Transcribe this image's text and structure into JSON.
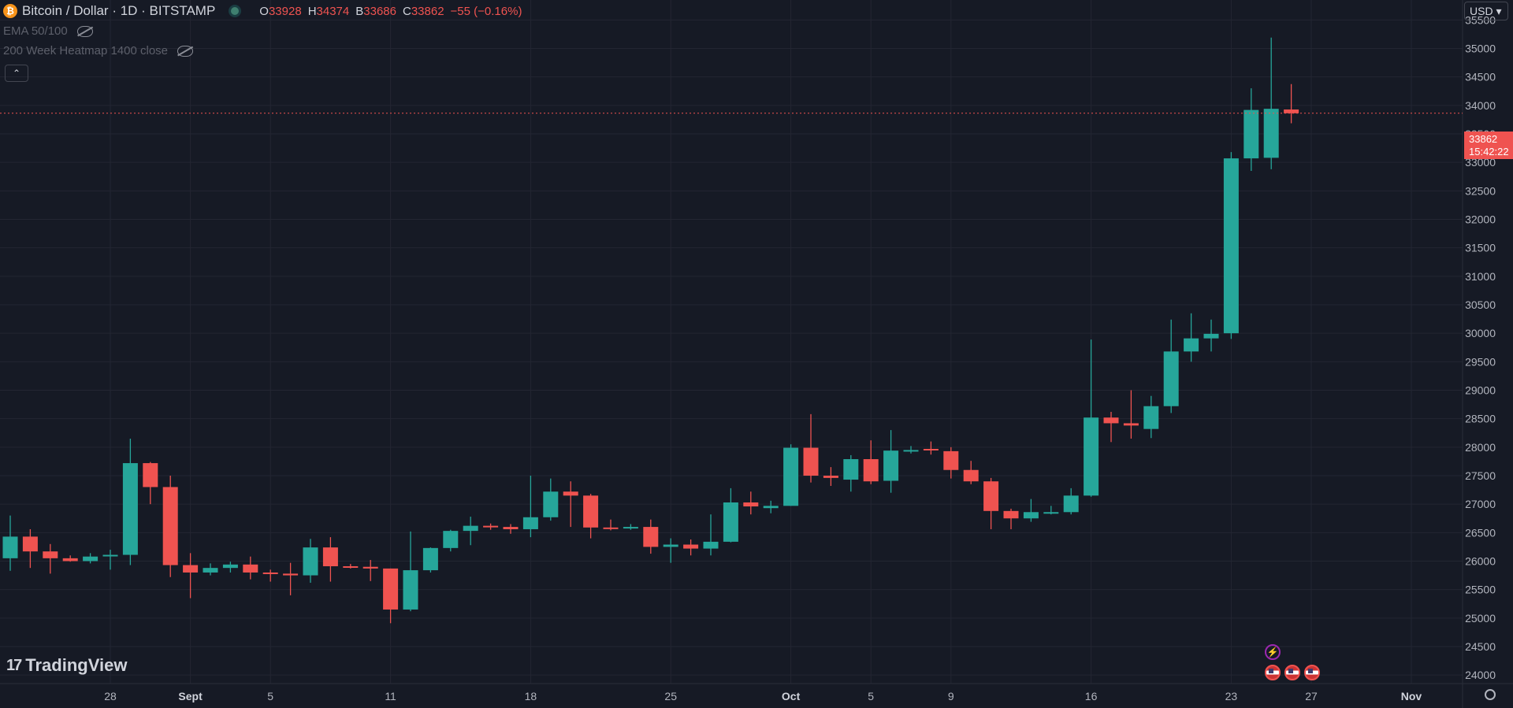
{
  "symbol": {
    "coin_glyph": "₿",
    "title": "Bitcoin / Dollar · 1D · BITSTAMP",
    "open_label": "O",
    "open": "33928",
    "high_label": "H",
    "high": "34374",
    "low_label": "B",
    "low": "33686",
    "close_label": "C",
    "close": "33862",
    "change": "−55 (−0.16%)"
  },
  "indicators": [
    {
      "label": "EMA 50/100"
    },
    {
      "label": "200 Week Heatmap 1400 close"
    }
  ],
  "currency": "USD ▾",
  "logo": {
    "mark": "17",
    "text": "TradingView"
  },
  "price_tag": {
    "price": "33862",
    "countdown": "15:42:22"
  },
  "colors": {
    "up": "#26a69a",
    "down": "#ef5350",
    "background": "#161a25",
    "grid": "#232632"
  },
  "icons": [
    "settings-icon",
    "eye-off-icon",
    "chevron-up-icon",
    "flag-us-icon",
    "lightning-icon"
  ],
  "chart_data": {
    "type": "candlestick",
    "grid": true,
    "ylim": [
      23850,
      35850
    ],
    "y_ticks": [
      24000,
      24500,
      25000,
      25500,
      26000,
      26500,
      27000,
      27500,
      28000,
      28500,
      29000,
      29500,
      30000,
      30500,
      31000,
      31500,
      32000,
      32500,
      33000,
      33500,
      34000,
      34500,
      35000,
      35500
    ],
    "x_ticks": [
      {
        "label": "28",
        "index": 5,
        "bold": false
      },
      {
        "label": "Sept",
        "index": 9,
        "bold": true
      },
      {
        "label": "5",
        "index": 13,
        "bold": false
      },
      {
        "label": "11",
        "index": 19,
        "bold": false
      },
      {
        "label": "18",
        "index": 26,
        "bold": false
      },
      {
        "label": "25",
        "index": 33,
        "bold": false
      },
      {
        "label": "Oct",
        "index": 39,
        "bold": true
      },
      {
        "label": "5",
        "index": 43,
        "bold": false
      },
      {
        "label": "9",
        "index": 47,
        "bold": false
      },
      {
        "label": "16",
        "index": 54,
        "bold": false
      },
      {
        "label": "23",
        "index": 61,
        "bold": false
      },
      {
        "label": "27",
        "index": 65,
        "bold": false
      },
      {
        "label": "Nov",
        "index": 70,
        "bold": true
      }
    ],
    "last_price": 33862,
    "candles": [
      [
        26050,
        26800,
        25830,
        26430
      ],
      [
        26430,
        26560,
        25880,
        26170
      ],
      [
        26170,
        26300,
        25780,
        26050
      ],
      [
        26050,
        26100,
        25990,
        26000
      ],
      [
        26000,
        26140,
        25960,
        26080
      ],
      [
        26110,
        26200,
        25850,
        26110
      ],
      [
        26110,
        28150,
        25930,
        27720
      ],
      [
        27720,
        27740,
        27000,
        27300
      ],
      [
        27300,
        27500,
        25720,
        25930
      ],
      [
        25930,
        26140,
        25350,
        25800
      ],
      [
        25800,
        25960,
        25750,
        25880
      ],
      [
        25880,
        25990,
        25800,
        25940
      ],
      [
        25940,
        26080,
        25680,
        25800
      ],
      [
        25800,
        25850,
        25640,
        25780
      ],
      [
        25780,
        25970,
        25400,
        25750
      ],
      [
        25750,
        26390,
        25620,
        26240
      ],
      [
        26240,
        26420,
        25640,
        25910
      ],
      [
        25910,
        25950,
        25870,
        25900
      ],
      [
        25900,
        26020,
        25650,
        25870
      ],
      [
        25870,
        25870,
        24910,
        25150
      ],
      [
        25150,
        26520,
        25120,
        25840
      ],
      [
        25840,
        26240,
        25800,
        26230
      ],
      [
        26230,
        26550,
        26170,
        26530
      ],
      [
        26530,
        26780,
        26280,
        26620
      ],
      [
        26620,
        26660,
        26550,
        26600
      ],
      [
        26600,
        26650,
        26480,
        26560
      ],
      [
        26560,
        27500,
        26420,
        26770
      ],
      [
        26770,
        27450,
        26710,
        27220
      ],
      [
        27220,
        27400,
        26600,
        27150
      ],
      [
        27150,
        27180,
        26400,
        26590
      ],
      [
        26590,
        26730,
        26540,
        26580
      ],
      [
        26580,
        26650,
        26550,
        26600
      ],
      [
        26600,
        26730,
        26130,
        26250
      ],
      [
        26250,
        26400,
        25970,
        26290
      ],
      [
        26290,
        26380,
        26100,
        26220
      ],
      [
        26220,
        26820,
        26100,
        26340
      ],
      [
        26340,
        27280,
        26330,
        27030
      ],
      [
        27030,
        27220,
        26820,
        26960
      ],
      [
        26930,
        27060,
        26840,
        26970
      ],
      [
        26970,
        28050,
        26970,
        27990
      ],
      [
        27990,
        28580,
        27380,
        27500
      ],
      [
        27500,
        27650,
        27320,
        27460
      ],
      [
        27430,
        27860,
        27220,
        27790
      ],
      [
        27790,
        28120,
        27350,
        27400
      ],
      [
        27410,
        28300,
        27200,
        27940
      ],
      [
        27940,
        28020,
        27890,
        27950
      ],
      [
        27970,
        28100,
        27870,
        27950
      ],
      [
        27930,
        28000,
        27450,
        27600
      ],
      [
        27600,
        27760,
        27350,
        27400
      ],
      [
        27400,
        27460,
        26560,
        26880
      ],
      [
        26880,
        26920,
        26560,
        26750
      ],
      [
        26750,
        27090,
        26690,
        26860
      ],
      [
        26860,
        26970,
        26820,
        26860
      ],
      [
        26860,
        27280,
        26820,
        27150
      ],
      [
        27150,
        29890,
        27130,
        28520
      ],
      [
        28520,
        28620,
        28090,
        28420
      ],
      [
        28420,
        29000,
        28150,
        28380
      ],
      [
        28320,
        28900,
        28160,
        28720
      ],
      [
        28720,
        30240,
        28600,
        29680
      ],
      [
        29680,
        30350,
        29500,
        29910
      ],
      [
        29910,
        30240,
        29680,
        29990
      ],
      [
        30000,
        33180,
        29900,
        33070
      ],
      [
        33070,
        34300,
        32850,
        33920
      ],
      [
        33080,
        35190,
        32880,
        33940
      ],
      [
        33928,
        34374,
        33686,
        33862
      ]
    ]
  }
}
